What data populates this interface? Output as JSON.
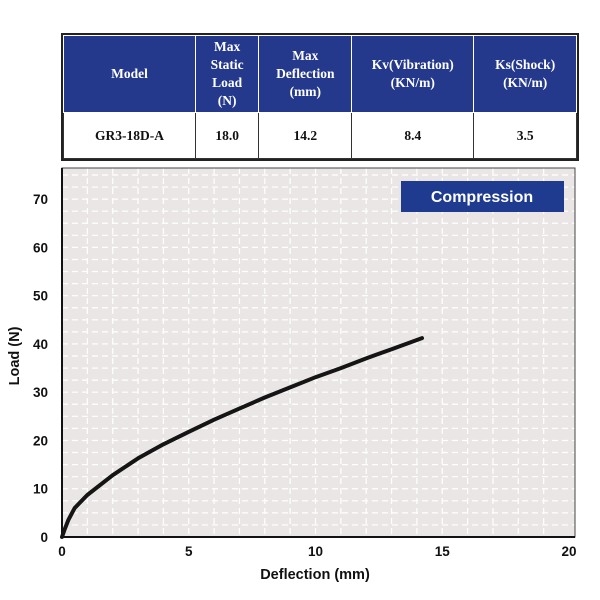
{
  "spec_table": {
    "headers": [
      [
        "Model"
      ],
      [
        "Max",
        "Static",
        "Load",
        "(N)"
      ],
      [
        "Max",
        "Deflection",
        "(mm)"
      ],
      [
        "Kv(Vibration)",
        "(KN/m)"
      ],
      [
        "Ks(Shock)",
        "(KN/m)"
      ]
    ],
    "row": [
      "GR3-18D-A",
      "18.0",
      "14.2",
      "8.4",
      "3.5"
    ]
  },
  "chart_data": {
    "type": "line",
    "legend_label": "Compression",
    "legend_position": "top-right",
    "xlabel": "Deflection (mm)",
    "ylabel": "Load (N)",
    "xlim": [
      0,
      20
    ],
    "ylim": [
      0,
      75
    ],
    "x_ticks": [
      "0",
      "5",
      "10",
      "15",
      "20"
    ],
    "y_ticks": [
      "0",
      "10",
      "20",
      "30",
      "40",
      "50",
      "60",
      "70"
    ],
    "grid": true,
    "series": [
      {
        "x": [
          0,
          0.1,
          0.25,
          0.5,
          1,
          2,
          3,
          4,
          5,
          6,
          7,
          8,
          9,
          10,
          11,
          12,
          13,
          14.2
        ],
        "y": [
          0,
          1.5,
          3.5,
          6,
          8.7,
          12.8,
          16.3,
          19.2,
          21.8,
          24.3,
          26.6,
          28.9,
          31.0,
          33.1,
          35.0,
          37.0,
          38.9,
          41.2
        ]
      }
    ]
  },
  "colors": {
    "header_bg": "#24388c",
    "plot_bg": "#ebe6e6",
    "legend_bg": "#1f3b8f",
    "curve": "#151515"
  }
}
